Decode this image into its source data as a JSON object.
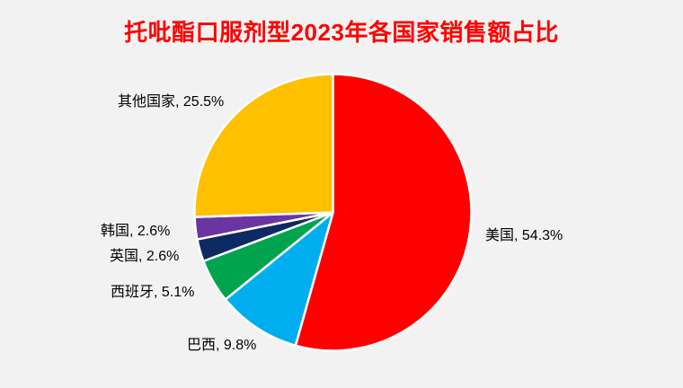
{
  "title": "托吡酯口服剂型2023年各国家销售额占比",
  "background_color": "#f2f2f2",
  "title_color": "#fe0000",
  "chart_data": {
    "type": "pie",
    "title": "托吡酯口服剂型2023年各国家销售额占比",
    "unit": "%",
    "direction": "clockwise",
    "start_angle_deg": 0,
    "legend": "none",
    "label_color": "#000000",
    "slice_border_color": "#ffffff",
    "slices": [
      {
        "name": "美国",
        "value": 54.3,
        "label": "美国, 54.3%",
        "color": "#fe0000"
      },
      {
        "name": "巴西",
        "value": 9.8,
        "label": "巴西, 9.8%",
        "color": "#00aeef"
      },
      {
        "name": "西班牙",
        "value": 5.1,
        "label": "西班牙, 5.1%",
        "color": "#00a44f"
      },
      {
        "name": "英国",
        "value": 2.6,
        "label": "英国, 2.6%",
        "color": "#0e2a63"
      },
      {
        "name": "韩国",
        "value": 2.6,
        "label": "韩国, 2.6%",
        "color": "#6b34a3"
      },
      {
        "name": "其他国家",
        "value": 25.5,
        "label": "其他国家, 25.5%",
        "color": "#ffc000"
      }
    ]
  }
}
